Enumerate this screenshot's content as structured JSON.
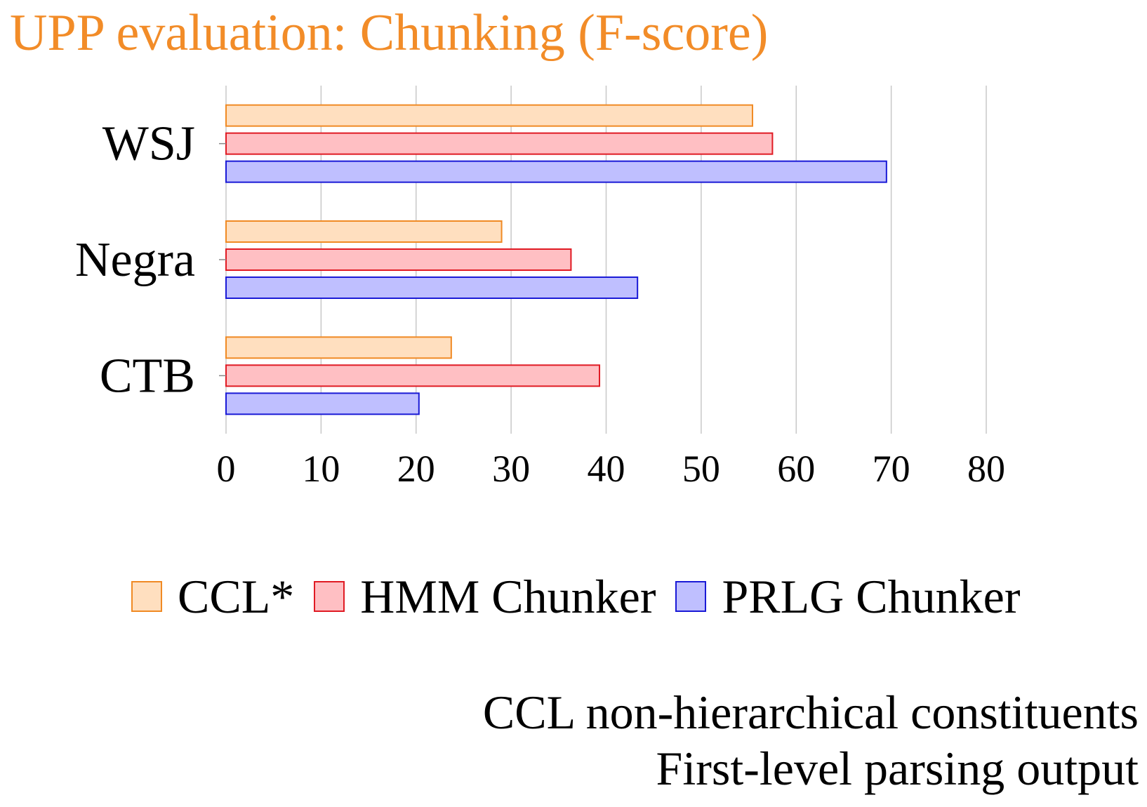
{
  "chart_data": {
    "type": "bar",
    "orientation": "horizontal",
    "title": "UPP evaluation: Chunking (F-score)",
    "categories": [
      "WSJ",
      "Negra",
      "CTB"
    ],
    "series": [
      {
        "name": "CCL*",
        "values": [
          55.4,
          29.0,
          23.7
        ]
      },
      {
        "name": "HMM Chunker",
        "values": [
          57.5,
          36.3,
          39.3
        ]
      },
      {
        "name": "PRLG Chunker",
        "values": [
          69.5,
          43.3,
          20.3
        ]
      }
    ],
    "xlabel": "",
    "ylabel": "",
    "xlim": [
      0,
      80
    ],
    "xticks": [
      0,
      10,
      20,
      30,
      40,
      50,
      60,
      70,
      80
    ],
    "grid": "vertical",
    "legend": "bottom",
    "colors": {
      "CCL*": {
        "fill": "#ffdfbf",
        "stroke": "#f08a24"
      },
      "HMM Chunker": {
        "fill": "#ffbfc3",
        "stroke": "#e01b24"
      },
      "PRLG Chunker": {
        "fill": "#bfbfff",
        "stroke": "#1a1ad6"
      }
    },
    "title_color": "#f28c28"
  },
  "notes": {
    "line1": "CCL non-hierarchical constituents",
    "line2": "First-level parsing output"
  }
}
